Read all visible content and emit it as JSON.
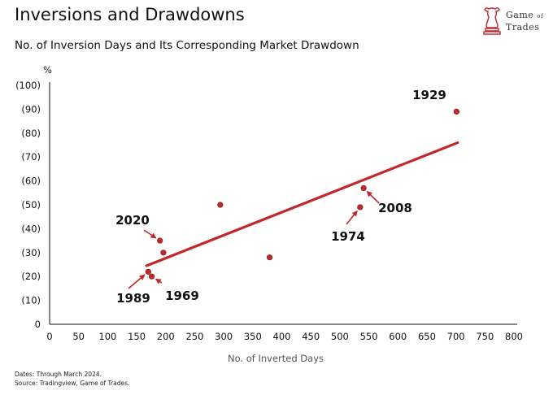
{
  "header": {
    "title": "Inversions and Drawdowns",
    "subtitle": "No. of Inversion Days and Its Corresponding Market Drawdown"
  },
  "logo": {
    "line1": "Game",
    "of": "of",
    "line2": "Trades"
  },
  "footer": {
    "line1": "Dates: Through March 2024.",
    "line2": "Source: Tradingview, Game of Trades."
  },
  "colors": {
    "accent": "#c0282a",
    "axis": "#111111"
  },
  "chart_data": {
    "type": "scatter",
    "title": "Inversions and Drawdowns",
    "subtitle": "No. of Inversion Days and Its Corresponding Market Drawdown",
    "xlabel": "No. of Inverted Days",
    "ylabel": "%",
    "xlim": [
      0,
      800
    ],
    "ylim": [
      0,
      100
    ],
    "x_ticks": [
      0,
      50,
      100,
      150,
      200,
      250,
      300,
      350,
      400,
      450,
      500,
      550,
      600,
      650,
      700,
      750,
      800
    ],
    "y_ticks": [
      {
        "value": 0,
        "label": "0"
      },
      {
        "value": 10,
        "label": "(10)"
      },
      {
        "value": 20,
        "label": "(20)"
      },
      {
        "value": 30,
        "label": "(30)"
      },
      {
        "value": 40,
        "label": "(40)"
      },
      {
        "value": 50,
        "label": "(50)"
      },
      {
        "value": 60,
        "label": "(60)"
      },
      {
        "value": 70,
        "label": "(70)"
      },
      {
        "value": 80,
        "label": "(80)"
      },
      {
        "value": 90,
        "label": "(90)"
      },
      {
        "value": 100,
        "label": "(100)"
      }
    ],
    "points": [
      {
        "x": 170,
        "y": 22,
        "label": "1989"
      },
      {
        "x": 176,
        "y": 20,
        "label": "1969"
      },
      {
        "x": 190,
        "y": 35,
        "label": "2020"
      },
      {
        "x": 196,
        "y": 30,
        "label": ""
      },
      {
        "x": 294,
        "y": 50,
        "label": ""
      },
      {
        "x": 379,
        "y": 28,
        "label": ""
      },
      {
        "x": 535,
        "y": 49,
        "label": "1974"
      },
      {
        "x": 541,
        "y": 57,
        "label": "2008"
      },
      {
        "x": 701,
        "y": 89,
        "label": "1929"
      }
    ],
    "trendline": {
      "x": [
        167,
        703
      ],
      "y": [
        24.5,
        76
      ]
    },
    "grid": false,
    "legend": "none"
  }
}
